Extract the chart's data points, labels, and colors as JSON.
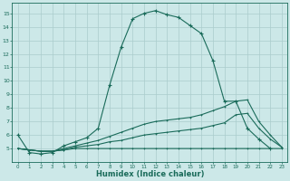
{
  "title": "",
  "xlabel": "Humidex (Indice chaleur)",
  "bg_color": "#cce8e8",
  "grid_color": "#aacccc",
  "line_color": "#1a6b5a",
  "xlim": [
    -0.5,
    23.5
  ],
  "ylim": [
    4.0,
    15.8
  ],
  "yticks": [
    5,
    6,
    7,
    8,
    9,
    10,
    11,
    12,
    13,
    14,
    15
  ],
  "xticks": [
    0,
    1,
    2,
    3,
    4,
    5,
    6,
    7,
    8,
    9,
    10,
    11,
    12,
    13,
    14,
    15,
    16,
    17,
    18,
    19,
    20,
    21,
    22,
    23
  ],
  "line1_x": [
    0,
    1,
    2,
    3,
    4,
    5,
    6,
    7,
    8,
    9,
    10,
    11,
    12,
    13,
    14,
    15,
    16,
    17,
    18,
    19,
    20,
    21,
    22
  ],
  "line1_y": [
    6.0,
    4.7,
    4.6,
    4.7,
    5.2,
    5.5,
    5.8,
    6.5,
    9.7,
    12.5,
    14.6,
    15.0,
    15.2,
    14.9,
    14.7,
    14.1,
    13.5,
    11.5,
    8.5,
    8.5,
    6.5,
    5.7,
    5.0
  ],
  "line2_x": [
    0,
    1,
    2,
    3,
    4,
    5,
    6,
    7,
    8,
    9,
    10,
    11,
    12,
    13,
    14,
    15,
    16,
    17,
    18,
    19,
    20,
    21,
    22,
    23
  ],
  "line2_y": [
    5.0,
    4.9,
    4.8,
    4.8,
    4.9,
    5.0,
    5.0,
    5.0,
    5.0,
    5.0,
    5.0,
    5.0,
    5.0,
    5.0,
    5.0,
    5.0,
    5.0,
    5.0,
    5.0,
    5.0,
    5.0,
    5.0,
    5.0,
    5.0
  ],
  "line3_x": [
    0,
    1,
    2,
    3,
    4,
    5,
    6,
    7,
    8,
    9,
    10,
    11,
    12,
    13,
    14,
    15,
    16,
    17,
    18,
    19,
    20,
    21,
    22,
    23
  ],
  "line3_y": [
    5.0,
    4.9,
    4.8,
    4.8,
    4.9,
    5.1,
    5.2,
    5.3,
    5.5,
    5.6,
    5.8,
    6.0,
    6.1,
    6.2,
    6.3,
    6.4,
    6.5,
    6.7,
    6.9,
    7.5,
    7.6,
    6.5,
    5.7,
    5.1
  ],
  "line4_x": [
    0,
    1,
    2,
    3,
    4,
    5,
    6,
    7,
    8,
    9,
    10,
    11,
    12,
    13,
    14,
    15,
    16,
    17,
    18,
    19,
    20,
    21,
    22,
    23
  ],
  "line4_y": [
    5.0,
    4.9,
    4.8,
    4.8,
    5.0,
    5.2,
    5.4,
    5.6,
    5.9,
    6.2,
    6.5,
    6.8,
    7.0,
    7.1,
    7.2,
    7.3,
    7.5,
    7.8,
    8.1,
    8.5,
    8.6,
    7.0,
    6.0,
    5.1
  ]
}
